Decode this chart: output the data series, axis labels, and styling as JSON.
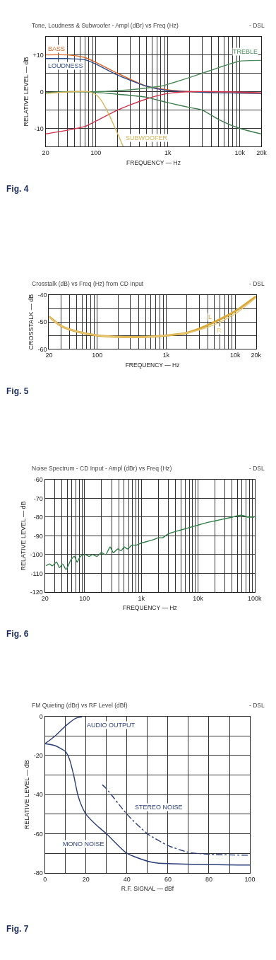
{
  "chart_data": [
    {
      "type": "line",
      "title": "Tone, Loudness & Subwoofer - Ampl (dBr) vs Freq (Hz)",
      "xlabel": "FREQUENCY — Hz",
      "ylabel": "RELATIVE LEVEL — dB",
      "log": "x",
      "grid": true,
      "marker": "none",
      "xlim": [
        20,
        20000
      ],
      "xticks": [
        20,
        {
          "value": 30,
          "label": null
        },
        {
          "value": 40,
          "label": null
        },
        {
          "value": 50,
          "label": null
        },
        {
          "value": 60,
          "label": null
        },
        {
          "value": 70,
          "label": null
        },
        {
          "value": 80,
          "label": null
        },
        {
          "value": 90,
          "label": null
        },
        100,
        {
          "value": 200,
          "label": null
        },
        {
          "value": 300,
          "label": null
        },
        {
          "value": 400,
          "label": null
        },
        {
          "value": 500,
          "label": null
        },
        {
          "value": 600,
          "label": null
        },
        {
          "value": 700,
          "label": null
        },
        {
          "value": 800,
          "label": null
        },
        {
          "value": 900,
          "label": null
        },
        {
          "value": 1000,
          "label": "1k"
        },
        {
          "value": 2000,
          "label": null
        },
        {
          "value": 3000,
          "label": null
        },
        {
          "value": 4000,
          "label": null
        },
        {
          "value": 5000,
          "label": null
        },
        {
          "value": 6000,
          "label": null
        },
        {
          "value": 7000,
          "label": null
        },
        {
          "value": 8000,
          "label": null
        },
        {
          "value": 9000,
          "label": null
        },
        {
          "value": 10000,
          "label": "10k"
        },
        {
          "value": 20000,
          "label": "20k"
        }
      ],
      "ylim": [
        -15,
        15
      ],
      "yticks": [
        {
          "value": 15,
          "label": null
        },
        {
          "value": 10,
          "label": "+10"
        },
        {
          "value": 5,
          "label": null
        },
        0,
        {
          "value": -5,
          "label": null
        },
        -10,
        {
          "value": -15,
          "label": null
        }
      ],
      "series": [
        {
          "name": "BASS",
          "color": "#d9662a",
          "x": [
            20,
            40,
            70,
            100,
            200,
            500,
            1000,
            2000,
            5000,
            20000
          ],
          "values": [
            10,
            10,
            9.3,
            8,
            5,
            1.5,
            0.5,
            0,
            -0.3,
            -0.5
          ]
        },
        {
          "name": "LOUDNESS",
          "color": "#2f4a8a",
          "x": [
            20,
            40,
            70,
            100,
            200,
            500,
            1000,
            2000,
            5000,
            20000
          ],
          "values": [
            9,
            9,
            8.7,
            7.5,
            4.5,
            1.5,
            0.3,
            0,
            -0.3,
            -0.5
          ]
        },
        {
          "color": "#d2334a",
          "x": [
            20,
            40,
            70,
            100,
            200,
            500,
            1000,
            2000,
            5000,
            20000
          ],
          "values": [
            -11.5,
            -10.5,
            -9.5,
            -8,
            -5,
            -2,
            -0.5,
            0,
            0,
            -0.3
          ]
        },
        {
          "name": "TREBLE",
          "color": "#4c8a5a",
          "x": [
            20,
            40,
            100,
            300,
            800,
            1000,
            3000,
            5000,
            10000,
            20000
          ],
          "values": [
            -0.3,
            0,
            0,
            0.5,
            1.5,
            2,
            5,
            6.5,
            8.3,
            8.5
          ]
        },
        {
          "color": "#3f7d4e",
          "x": [
            20,
            50,
            100,
            200,
            500,
            1000,
            2000,
            3000,
            5000,
            10000,
            20000
          ],
          "values": [
            -0.3,
            0,
            -0.2,
            -0.7,
            -1.5,
            -3,
            -4.3,
            -5,
            -7.5,
            -10,
            -11.5
          ]
        },
        {
          "name": "SUBWOOFER",
          "color": "#d7b55a",
          "x": [
            20,
            50,
            80,
            100,
            120,
            150,
            200,
            240
          ],
          "values": [
            -0.5,
            0,
            0,
            -0.8,
            -2.5,
            -6,
            -11.4,
            -15
          ]
        }
      ],
      "annotations": [
        "- DSL",
        "Fig. 4"
      ]
    },
    {
      "type": "line",
      "title": "Crosstalk (dB) vs Freq (Hz) from CD Input",
      "xlabel": "FREQUENCY — Hz",
      "ylabel": "CROSSTALK — dB",
      "log": "x",
      "grid": true,
      "marker": "none",
      "xlim": [
        20,
        20000
      ],
      "xticks": [
        20,
        {
          "value": 30,
          "label": null
        },
        {
          "value": 40,
          "label": null
        },
        {
          "value": 50,
          "label": null
        },
        {
          "value": 60,
          "label": null
        },
        {
          "value": 70,
          "label": null
        },
        {
          "value": 80,
          "label": null
        },
        {
          "value": 90,
          "label": null
        },
        100,
        {
          "value": 200,
          "label": null
        },
        {
          "value": 300,
          "label": null
        },
        {
          "value": 400,
          "label": null
        },
        {
          "value": 500,
          "label": null
        },
        {
          "value": 600,
          "label": null
        },
        {
          "value": 700,
          "label": null
        },
        {
          "value": 800,
          "label": null
        },
        {
          "value": 900,
          "label": null
        },
        {
          "value": 1000,
          "label": "1k"
        },
        {
          "value": 2000,
          "label": null
        },
        {
          "value": 3000,
          "label": null
        },
        {
          "value": 4000,
          "label": null
        },
        {
          "value": 5000,
          "label": null
        },
        {
          "value": 6000,
          "label": null
        },
        {
          "value": 7000,
          "label": null
        },
        {
          "value": 8000,
          "label": null
        },
        {
          "value": 9000,
          "label": null
        },
        {
          "value": 10000,
          "label": "10k"
        },
        {
          "value": 20000,
          "label": "20k"
        }
      ],
      "ylim": [
        -60,
        -40
      ],
      "yticks": [
        -40,
        {
          "value": -45,
          "label": null
        },
        -50,
        {
          "value": -55,
          "label": null
        },
        -60
      ],
      "series": [
        {
          "name": "L",
          "color": "#d8a838",
          "x": [
            20,
            30,
            50,
            100,
            200,
            500,
            1000,
            2000,
            3000,
            5000,
            10000,
            20000
          ],
          "values": [
            -48,
            -51.5,
            -53.5,
            -55,
            -55.5,
            -55.5,
            -55,
            -54,
            -52.5,
            -50,
            -46,
            -40.5
          ]
        },
        {
          "name": "R",
          "color": "#e6c878",
          "x": [
            20,
            30,
            50,
            100,
            200,
            500,
            1000,
            2000,
            3000,
            5000,
            10000,
            20000
          ],
          "values": [
            -48,
            -51.5,
            -53.5,
            -55,
            -55.5,
            -55.5,
            -55,
            -54,
            -53,
            -51,
            -47,
            -41
          ]
        }
      ],
      "annotations": [
        "- DSL",
        "Fig. 5"
      ]
    },
    {
      "type": "line",
      "title": "Noise Spectrum - CD Input - Ampl (dBr) vs Freq (Hz)",
      "xlabel": "FREQUENCY — Hz",
      "ylabel": "RELATIVE LEVEL — dB",
      "log": "x",
      "grid": true,
      "marker": "none",
      "xlim": [
        20,
        100000
      ],
      "xticks": [
        20,
        {
          "value": 30,
          "label": null
        },
        {
          "value": 40,
          "label": null
        },
        {
          "value": 50,
          "label": null
        },
        {
          "value": 60,
          "label": null
        },
        {
          "value": 70,
          "label": null
        },
        {
          "value": 80,
          "label": null
        },
        {
          "value": 90,
          "label": null
        },
        100,
        {
          "value": 200,
          "label": null
        },
        {
          "value": 300,
          "label": null
        },
        {
          "value": 400,
          "label": null
        },
        {
          "value": 500,
          "label": null
        },
        {
          "value": 600,
          "label": null
        },
        {
          "value": 700,
          "label": null
        },
        {
          "value": 800,
          "label": null
        },
        {
          "value": 900,
          "label": null
        },
        {
          "value": 1000,
          "label": "1k"
        },
        {
          "value": 2000,
          "label": null
        },
        {
          "value": 3000,
          "label": null
        },
        {
          "value": 4000,
          "label": null
        },
        {
          "value": 5000,
          "label": null
        },
        {
          "value": 6000,
          "label": null
        },
        {
          "value": 7000,
          "label": null
        },
        {
          "value": 8000,
          "label": null
        },
        {
          "value": 9000,
          "label": null
        },
        {
          "value": 10000,
          "label": "10k"
        },
        {
          "value": 20000,
          "label": null
        },
        {
          "value": 30000,
          "label": null
        },
        {
          "value": 40000,
          "label": null
        },
        {
          "value": 50000,
          "label": null
        },
        {
          "value": 60000,
          "label": null
        },
        {
          "value": 70000,
          "label": null
        },
        {
          "value": 80000,
          "label": null
        },
        {
          "value": 90000,
          "label": null
        },
        {
          "value": 100000,
          "label": "100k"
        }
      ],
      "ylim": [
        -120,
        -60
      ],
      "yticks": [
        -60,
        -70,
        -80,
        -90,
        -100,
        -110,
        -120
      ],
      "series": [
        {
          "color": "#2e7d45",
          "x": [
            21,
            24,
            27,
            32,
            36,
            41,
            47,
            57,
            66,
            74,
            84,
            101,
            121,
            138,
            165,
            197,
            236,
            282,
            322,
            384,
            439,
            501,
            571,
            682,
            815,
            972,
            1271,
            1663,
            1988,
            2376,
            2967,
            3710,
            4845,
            6327,
            8262,
            10790,
            14090,
            20040,
            28520,
            40570,
            57720,
            75380,
            98430
          ],
          "values": [
            -106,
            -105,
            -106,
            -104,
            -107,
            -105,
            -108,
            -103,
            -101,
            -104,
            -101,
            -100,
            -101,
            -100,
            -101,
            -99,
            -100,
            -96,
            -99,
            -97,
            -98,
            -96,
            -97,
            -95,
            -95,
            -94,
            -93,
            -92,
            -91,
            -91,
            -89,
            -88,
            -87,
            -86,
            -85,
            -84,
            -83,
            -82,
            -81,
            -80,
            -79,
            -80,
            -80
          ]
        }
      ],
      "annotations": [
        "- DSL",
        "Fig. 6"
      ]
    },
    {
      "type": "line",
      "title": "FM Quieting (dBr) vs RF Level (dBf)",
      "xlabel": "R.F. SIGNAL — dBf",
      "ylabel": "RELATIVE LEVEL — dB",
      "grid": true,
      "marker": "none",
      "xlim": [
        0,
        100
      ],
      "xticks": [
        0,
        {
          "value": 10,
          "label": null
        },
        20,
        {
          "value": 30,
          "label": null
        },
        40,
        {
          "value": 50,
          "label": null
        },
        60,
        {
          "value": 70,
          "label": null
        },
        80,
        {
          "value": 90,
          "label": null
        },
        100
      ],
      "ylim": [
        -80,
        0
      ],
      "yticks": [
        0,
        {
          "value": -10,
          "label": null
        },
        -20,
        {
          "value": -30,
          "label": null
        },
        -40,
        {
          "value": -50,
          "label": null
        },
        -60,
        {
          "value": -70,
          "label": null
        },
        -80
      ],
      "series": [
        {
          "name": "AUDIO OUTPUT",
          "color": "#2c3e7a",
          "x": [
            0,
            5,
            10,
            15,
            18
          ],
          "values": [
            -14,
            -10,
            -5,
            -1,
            -0.3
          ]
        },
        {
          "name": "MONO NOISE",
          "color": "#2c3e7a",
          "x": [
            0,
            5,
            10,
            12,
            14,
            16,
            18,
            20,
            25,
            30,
            40,
            50,
            55,
            100
          ],
          "values": [
            -14,
            -15,
            -18,
            -22,
            -30,
            -40,
            -46,
            -50,
            -55.5,
            -60,
            -70,
            -74,
            -75,
            -76
          ]
        },
        {
          "name": "STEREO NOISE",
          "color": "#2c3e7a",
          "line_style": "dashdot",
          "x": [
            28,
            30,
            40,
            50,
            60,
            70,
            80,
            100
          ],
          "values": [
            -35,
            -37,
            -50,
            -60,
            -66,
            -69.5,
            -70.5,
            -71
          ]
        }
      ],
      "annotations": [
        "- DSL",
        "Fig. 7"
      ]
    }
  ]
}
